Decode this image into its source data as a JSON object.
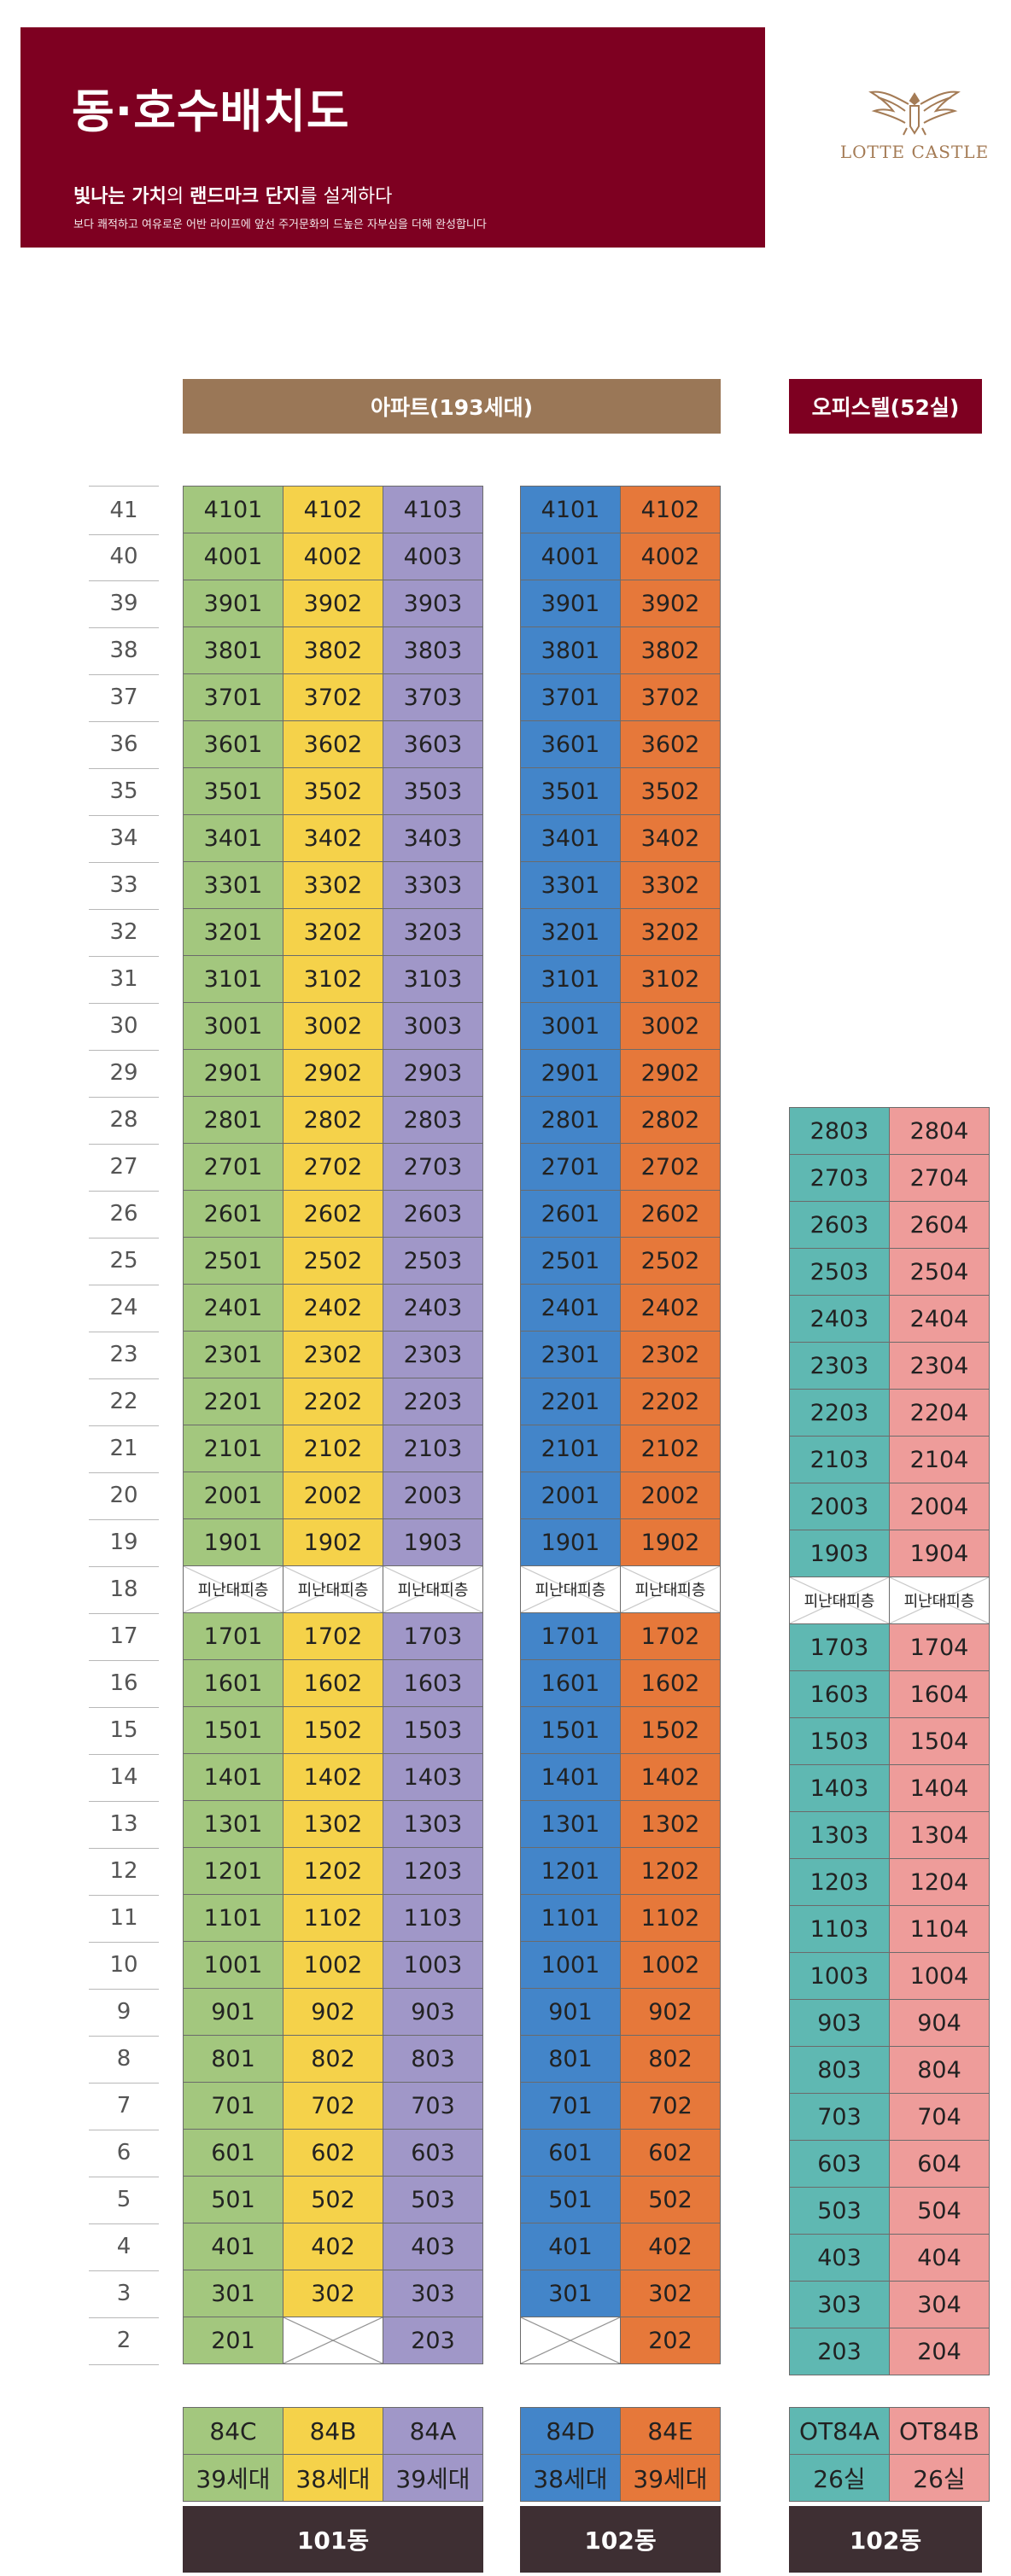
{
  "header": {
    "title": "동·호수배치도",
    "tagline_bold1": "빛나는 가치",
    "tagline_mid": "의 ",
    "tagline_bold2": "랜드마크 단지",
    "tagline_end": "를 설계하다",
    "subtitle": "보다 쾌적하고 여유로운 어반 라이프에 앞선 주거문화의 드높은 자부심을 더해 완성합니다",
    "logo_text": "LOTTE CASTLE"
  },
  "sections": {
    "apartment": "아파트(193세대)",
    "officetel": "오피스텔(52실)"
  },
  "floors": [
    "41",
    "40",
    "39",
    "38",
    "37",
    "36",
    "35",
    "34",
    "33",
    "32",
    "31",
    "30",
    "29",
    "28",
    "27",
    "26",
    "25",
    "24",
    "23",
    "22",
    "21",
    "20",
    "19",
    "18",
    "17",
    "16",
    "15",
    "14",
    "13",
    "12",
    "11",
    "10",
    "9",
    "8",
    "7",
    "6",
    "5",
    "4",
    "3",
    "2"
  ],
  "refuge_label": "피난대피층",
  "types": {
    "a1": {
      "type": "84C",
      "count": "39세대"
    },
    "a2": {
      "type": "84B",
      "count": "38세대"
    },
    "a3": {
      "type": "84A",
      "count": "39세대"
    },
    "b1": {
      "type": "84D",
      "count": "38세대"
    },
    "b2": {
      "type": "84E",
      "count": "39세대"
    },
    "o1": {
      "type": "OT84A",
      "count": "26실"
    },
    "o2": {
      "type": "OT84B",
      "count": "26실"
    }
  },
  "buildings": {
    "apt101": "101동",
    "apt102": "102동",
    "off102": "102동"
  },
  "colors": {
    "brand": "#7e0021",
    "apartment_header": "#9a7757",
    "green": "#a3c77e",
    "yellow": "#f5d24a",
    "purple": "#a097c8",
    "blue": "#4385c9",
    "orange": "#e6783a",
    "teal": "#5fb8b2",
    "pink": "#ee9c9a",
    "building_label": "#3e2f33"
  },
  "columns": [
    {
      "key": "a1",
      "color": "green",
      "unit_suffix": "01",
      "top_floor": 41,
      "blank_floor_2": false
    },
    {
      "key": "a2",
      "color": "yellow",
      "unit_suffix": "02",
      "top_floor": 41,
      "blank_floor_2": true
    },
    {
      "key": "a3",
      "color": "purple",
      "unit_suffix": "03",
      "top_floor": 41,
      "blank_floor_2": false
    },
    {
      "key": "b1",
      "color": "blue",
      "unit_suffix": "01",
      "top_floor": 41,
      "blank_floor_2": true
    },
    {
      "key": "b2",
      "color": "orange",
      "unit_suffix": "02",
      "top_floor": 41,
      "blank_floor_2": false
    },
    {
      "key": "o1",
      "color": "teal",
      "unit_suffix": "03",
      "top_floor": 28,
      "blank_floor_2": false
    },
    {
      "key": "o2",
      "color": "pink",
      "unit_suffix": "04",
      "top_floor": 28,
      "blank_floor_2": false
    }
  ]
}
